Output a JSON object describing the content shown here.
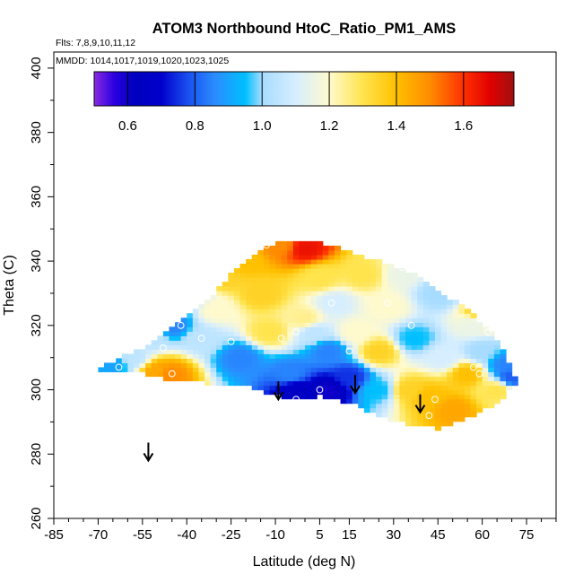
{
  "chart_data": {
    "type": "heatmap",
    "title": "ATOM3 Northbound HtoC_Ratio_PM1_AMS",
    "flights_note": "Flts: 7,8,9,10,11,12",
    "dates_note": "MMDD: 1014,1017,1019,1020,1023,1025",
    "xlabel": "Latitude (deg N)",
    "ylabel": "Theta (C)",
    "xlim": [
      -85,
      85
    ],
    "ylim": [
      260,
      405
    ],
    "x_tick_labels": [
      "-85",
      "-70",
      "-55",
      "-40",
      "-25",
      "-10",
      "5",
      "15",
      "30",
      "45",
      "60",
      "75"
    ],
    "y_tick_labels": [
      "260",
      "280",
      "300",
      "320",
      "340",
      "360",
      "380",
      "400"
    ],
    "colorbar": {
      "range": [
        0.5,
        1.75
      ],
      "tick_labels": [
        "0.6",
        "0.8",
        "1.0",
        "1.2",
        "1.4",
        "1.6"
      ],
      "colors": {
        "0.50": "#8a2be2",
        "0.56": "#2a00e0",
        "0.62": "#0000c0",
        "0.70": "#0000cc",
        "0.78": "#1a50f0",
        "0.86": "#2a8cff",
        "0.95": "#00bfff",
        "1.00": "#a7dcff",
        "1.10": "#d6eeff",
        "1.20": "#fffacd",
        "1.30": "#ffe44d",
        "1.40": "#ffc000",
        "1.50": "#ff8c00",
        "1.60": "#ff3000",
        "1.68": "#e00000",
        "1.75": "#a01010"
      }
    },
    "field_outline": [
      [
        -70,
        307
      ],
      [
        -55,
        313
      ],
      [
        -42,
        321
      ],
      [
        -35,
        326
      ],
      [
        -25,
        336
      ],
      [
        -15,
        343
      ],
      [
        -10,
        346
      ],
      [
        5,
        346
      ],
      [
        15,
        343
      ],
      [
        25,
        340
      ],
      [
        35,
        337
      ],
      [
        45,
        331
      ],
      [
        55,
        325
      ],
      [
        63,
        318
      ],
      [
        67,
        312
      ],
      [
        70,
        306
      ],
      [
        72,
        302
      ],
      [
        65,
        296
      ],
      [
        55,
        291
      ],
      [
        45,
        288
      ],
      [
        35,
        289
      ],
      [
        25,
        292
      ],
      [
        15,
        296
      ],
      [
        5,
        298
      ],
      [
        -5,
        297
      ],
      [
        -13,
        299
      ],
      [
        -22,
        302
      ],
      [
        -32,
        302
      ],
      [
        -45,
        303
      ],
      [
        -55,
        305
      ],
      [
        -65,
        306
      ],
      [
        -71,
        306
      ]
    ],
    "field_anchors": [
      [
        -65,
        308,
        0.9
      ],
      [
        -58,
        310,
        1.05
      ],
      [
        -50,
        306,
        1.45
      ],
      [
        -46,
        305,
        1.5
      ],
      [
        -52,
        316,
        1.05
      ],
      [
        -45,
        320,
        0.85
      ],
      [
        -40,
        330,
        0.85
      ],
      [
        -35,
        316,
        1.05
      ],
      [
        -30,
        325,
        1.2
      ],
      [
        -28,
        335,
        1.35
      ],
      [
        -22,
        310,
        0.85
      ],
      [
        -20,
        340,
        1.4
      ],
      [
        -15,
        330,
        1.35
      ],
      [
        -12,
        318,
        1.3
      ],
      [
        -8,
        345,
        1.5
      ],
      [
        -5,
        305,
        0.85
      ],
      [
        -3,
        300,
        0.65
      ],
      [
        0,
        344,
        1.65
      ],
      [
        0,
        322,
        1.25
      ],
      [
        3,
        318,
        1.05
      ],
      [
        5,
        335,
        1.3
      ],
      [
        8,
        300,
        0.6
      ],
      [
        8,
        312,
        0.85
      ],
      [
        10,
        327,
        1.1
      ],
      [
        15,
        304,
        0.75
      ],
      [
        17,
        318,
        1.2
      ],
      [
        20,
        336,
        1.3
      ],
      [
        25,
        300,
        0.95
      ],
      [
        25,
        312,
        1.35
      ],
      [
        28,
        326,
        1.2
      ],
      [
        33,
        336,
        1.15
      ],
      [
        35,
        300,
        1.35
      ],
      [
        37,
        316,
        0.95
      ],
      [
        42,
        298,
        1.4
      ],
      [
        45,
        330,
        1.0
      ],
      [
        47,
        310,
        1.1
      ],
      [
        50,
        294,
        1.45
      ],
      [
        55,
        305,
        1.4
      ],
      [
        57,
        320,
        1.15
      ],
      [
        60,
        312,
        1.0
      ],
      [
        62,
        324,
        1.5
      ],
      [
        65,
        300,
        1.3
      ],
      [
        68,
        308,
        0.85
      ],
      [
        70,
        304,
        0.8
      ]
    ],
    "sample_points": [
      [
        -63,
        307
      ],
      [
        -48,
        313
      ],
      [
        -45,
        305
      ],
      [
        -40,
        332
      ],
      [
        -42,
        320
      ],
      [
        -35,
        316
      ],
      [
        -25,
        315
      ],
      [
        -13,
        345
      ],
      [
        -8,
        316
      ],
      [
        -3,
        318
      ],
      [
        -3,
        297
      ],
      [
        5,
        300
      ],
      [
        9,
        327
      ],
      [
        15,
        312
      ],
      [
        28,
        327
      ],
      [
        33,
        338
      ],
      [
        36,
        320
      ],
      [
        42,
        292
      ],
      [
        44,
        297
      ],
      [
        57,
        307
      ],
      [
        59,
        305
      ],
      [
        62,
        318
      ]
    ],
    "flight_arrows": [
      {
        "lat": -53,
        "theta": 278
      },
      {
        "lat": -9,
        "theta": 297
      },
      {
        "lat": 17,
        "theta": 299
      },
      {
        "lat": 39,
        "theta": 293
      }
    ]
  }
}
